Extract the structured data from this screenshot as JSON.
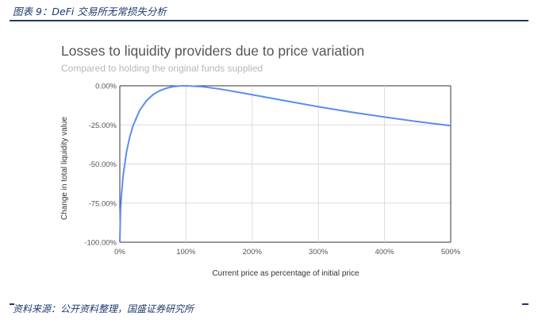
{
  "figure": {
    "caption": "图表 9：DeFi 交易所无常损失分析",
    "source": "资料来源：公开资料整理，国盛证券研究所"
  },
  "chart_data": {
    "type": "line",
    "title": "Losses to liquidity providers due to price variation",
    "subtitle": "Compared to holding the original funds supplied",
    "xlabel": "Current price as percentage of initial price",
    "ylabel": "Change in total liquidity value",
    "xlim": [
      0,
      500
    ],
    "ylim": [
      -100,
      0
    ],
    "x_ticks": [
      "0%",
      "100%",
      "200%",
      "300%",
      "400%",
      "500%"
    ],
    "y_ticks": [
      "0.00%",
      "-25.00%",
      "-50.00%",
      "-75.00%",
      "-100.00%"
    ],
    "grid": true,
    "line_color": "#5b8def",
    "series": [
      {
        "x": [
          0,
          1,
          2,
          5,
          10,
          15,
          20,
          30,
          40,
          50,
          60,
          70,
          80,
          90,
          100,
          125,
          150,
          175,
          200,
          250,
          300,
          350,
          400,
          450,
          500
        ],
        "y": [
          -100,
          -80.2,
          -72.3,
          -57.4,
          -42.5,
          -32.7,
          -25.5,
          -15.7,
          -9.7,
          -5.7,
          -3.2,
          -1.6,
          -0.6,
          -0.1,
          0,
          -0.6,
          -2.0,
          -3.8,
          -5.7,
          -9.6,
          -13.4,
          -16.9,
          -20.0,
          -22.9,
          -25.5
        ]
      }
    ]
  }
}
